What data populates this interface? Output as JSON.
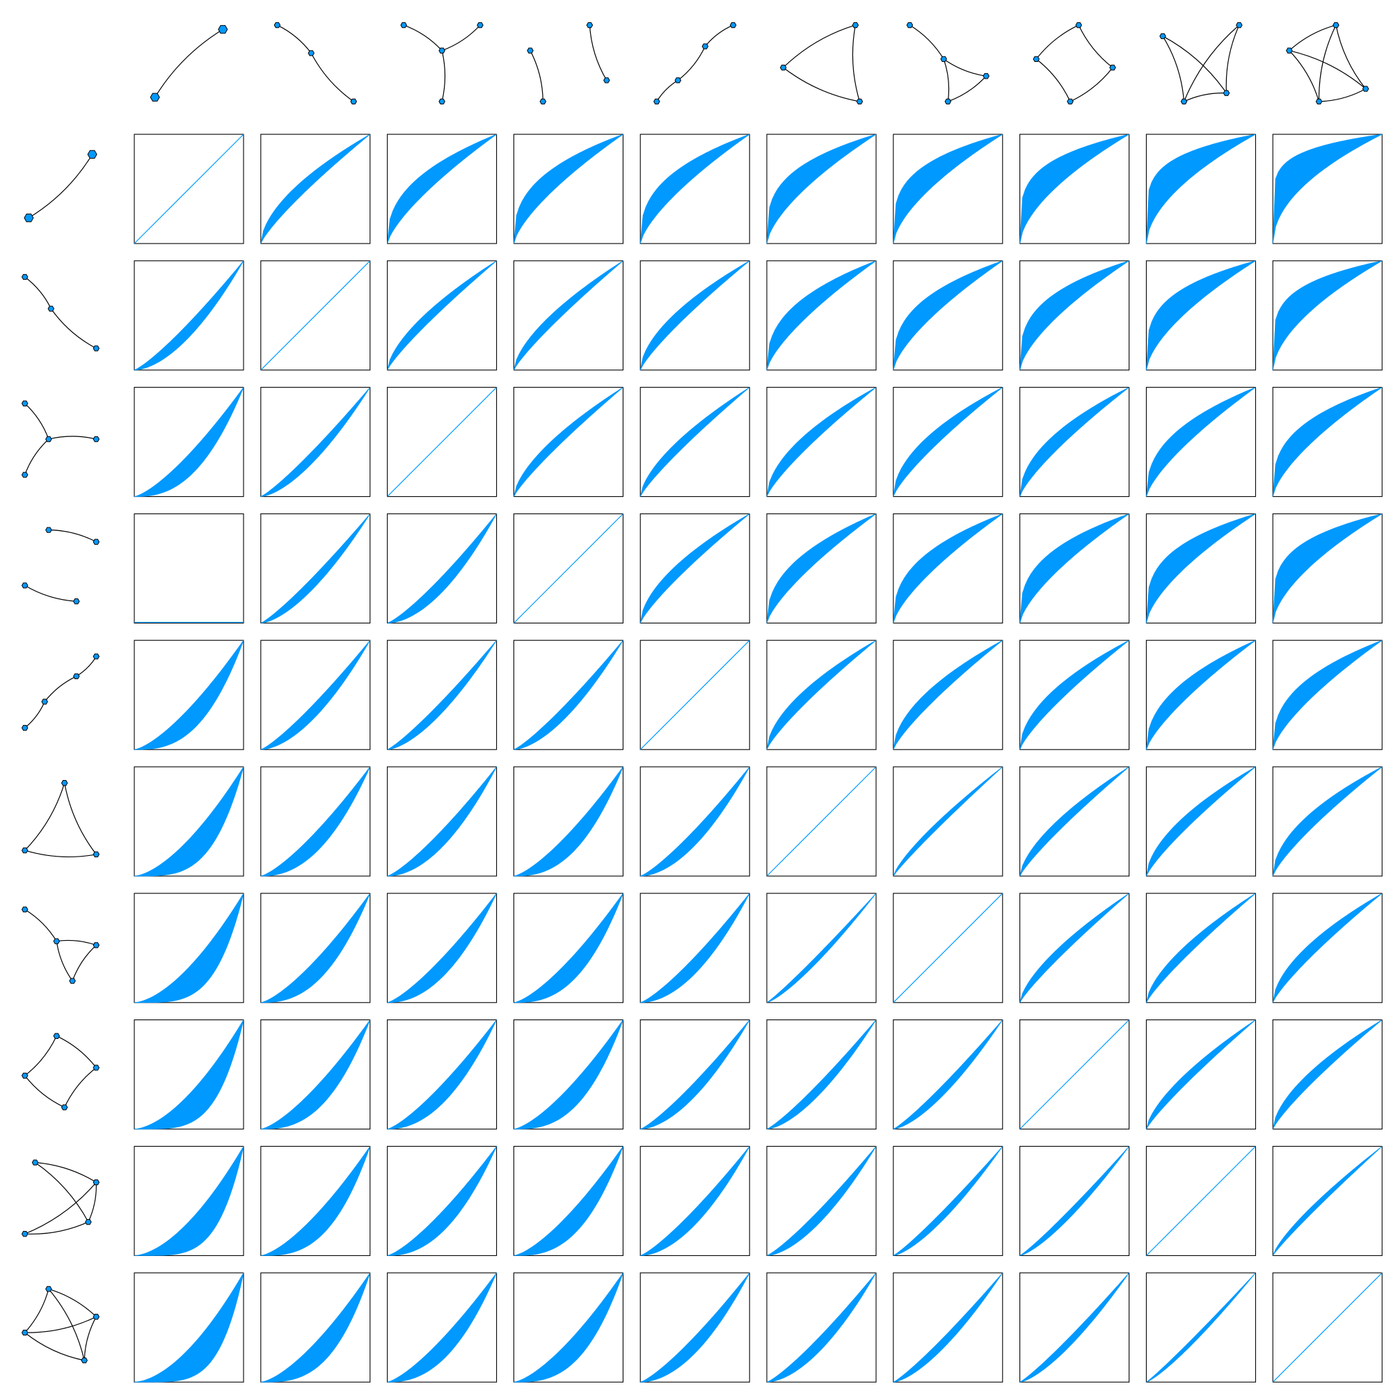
{
  "colors": {
    "fill": "#0099ff",
    "edge": "#000000",
    "node_fill": "#0099ff",
    "node_stroke": "#000000",
    "cell_border": "#000000",
    "background": "#ffffff"
  },
  "graphs": [
    {
      "name": "edge",
      "nodes": [
        [
          0.1,
          0.9
        ],
        [
          0.9,
          0.1
        ]
      ],
      "edges": [
        [
          0,
          1
        ]
      ],
      "node_shape": "hexagon"
    },
    {
      "name": "path-3",
      "nodes": [
        [
          0.05,
          0.05
        ],
        [
          0.45,
          0.38
        ],
        [
          0.95,
          0.95
        ]
      ],
      "edges": [
        [
          0,
          1
        ],
        [
          1,
          2
        ]
      ],
      "node_shape": "hexagon"
    },
    {
      "name": "star-3",
      "nodes": [
        [
          0.05,
          0.05
        ],
        [
          0.5,
          0.35
        ],
        [
          0.95,
          0.05
        ],
        [
          0.5,
          0.95
        ]
      ],
      "edges": [
        [
          0,
          1
        ],
        [
          1,
          2
        ],
        [
          1,
          3
        ]
      ],
      "node_shape": "hexagon"
    },
    {
      "name": "two-edges",
      "nodes": [
        [
          0.05,
          0.35
        ],
        [
          0.2,
          0.95
        ],
        [
          0.75,
          0.05
        ],
        [
          0.95,
          0.7
        ]
      ],
      "edges": [
        [
          0,
          1
        ],
        [
          2,
          3
        ]
      ],
      "node_shape": "hexagon"
    },
    {
      "name": "path-4",
      "nodes": [
        [
          0.05,
          0.95
        ],
        [
          0.3,
          0.7
        ],
        [
          0.62,
          0.3
        ],
        [
          0.95,
          0.05
        ]
      ],
      "edges": [
        [
          0,
          1
        ],
        [
          1,
          2
        ],
        [
          2,
          3
        ]
      ],
      "node_shape": "hexagon"
    },
    {
      "name": "triangle",
      "nodes": [
        [
          0.05,
          0.55
        ],
        [
          0.9,
          0.05
        ],
        [
          0.95,
          0.95
        ]
      ],
      "edges": [
        [
          0,
          1
        ],
        [
          1,
          2
        ],
        [
          2,
          0
        ]
      ],
      "node_shape": "hexagon"
    },
    {
      "name": "paw",
      "nodes": [
        [
          0.05,
          0.05
        ],
        [
          0.45,
          0.45
        ],
        [
          0.95,
          0.65
        ],
        [
          0.5,
          0.95
        ]
      ],
      "edges": [
        [
          0,
          1
        ],
        [
          1,
          2
        ],
        [
          2,
          3
        ],
        [
          3,
          1
        ]
      ],
      "node_shape": "hexagon"
    },
    {
      "name": "square",
      "nodes": [
        [
          0.05,
          0.45
        ],
        [
          0.55,
          0.05
        ],
        [
          0.95,
          0.55
        ],
        [
          0.45,
          0.95
        ]
      ],
      "edges": [
        [
          0,
          1
        ],
        [
          1,
          2
        ],
        [
          2,
          3
        ],
        [
          3,
          0
        ]
      ],
      "node_shape": "hexagon"
    },
    {
      "name": "square-crossed",
      "nodes": [
        [
          0.05,
          0.18
        ],
        [
          0.95,
          0.05
        ],
        [
          0.8,
          0.85
        ],
        [
          0.3,
          0.95
        ]
      ],
      "edges": [
        [
          0,
          2
        ],
        [
          1,
          3
        ],
        [
          0,
          3
        ],
        [
          1,
          2
        ],
        [
          3,
          2
        ]
      ],
      "node_shape": "hexagon"
    },
    {
      "name": "k4",
      "nodes": [
        [
          0.05,
          0.35
        ],
        [
          0.6,
          0.05
        ],
        [
          0.95,
          0.8
        ],
        [
          0.4,
          0.95
        ]
      ],
      "edges": [
        [
          0,
          1
        ],
        [
          1,
          2
        ],
        [
          2,
          3
        ],
        [
          3,
          0
        ],
        [
          0,
          2
        ],
        [
          1,
          3
        ]
      ],
      "node_shape": "hexagon"
    }
  ],
  "matrix_params": [
    [
      0.0,
      0.55,
      0.9,
      1.0,
      1.0,
      1.2,
      1.3,
      1.45,
      1.65,
      1.95
    ],
    [
      0.55,
      0.0,
      0.45,
      0.45,
      0.55,
      0.95,
      1.05,
      1.15,
      1.3,
      1.55
    ],
    [
      0.9,
      0.45,
      0.0,
      0.45,
      0.45,
      0.6,
      0.65,
      0.7,
      0.9,
      1.1
    ],
    [
      1.0,
      0.45,
      0.6,
      0.0,
      0.55,
      0.85,
      0.95,
      1.05,
      1.2,
      1.4
    ],
    [
      1.0,
      0.55,
      0.45,
      0.5,
      0.0,
      0.55,
      0.6,
      0.65,
      0.8,
      0.95
    ],
    [
      1.3,
      0.8,
      0.65,
      0.9,
      0.6,
      0.0,
      0.25,
      0.45,
      0.55,
      0.65
    ],
    [
      1.4,
      0.9,
      0.75,
      0.95,
      0.65,
      0.25,
      0.0,
      0.4,
      0.45,
      0.55
    ],
    [
      1.45,
      0.95,
      0.75,
      1.0,
      0.55,
      0.45,
      0.4,
      0.0,
      0.4,
      0.5
    ],
    [
      1.5,
      1.05,
      0.8,
      1.0,
      0.6,
      0.5,
      0.35,
      0.3,
      0.0,
      0.25
    ],
    [
      1.55,
      1.1,
      0.85,
      1.05,
      0.65,
      0.55,
      0.4,
      0.35,
      0.2,
      0.0
    ]
  ],
  "special_cells": [
    {
      "row": 3,
      "col": 0,
      "kind": "flat"
    }
  ]
}
